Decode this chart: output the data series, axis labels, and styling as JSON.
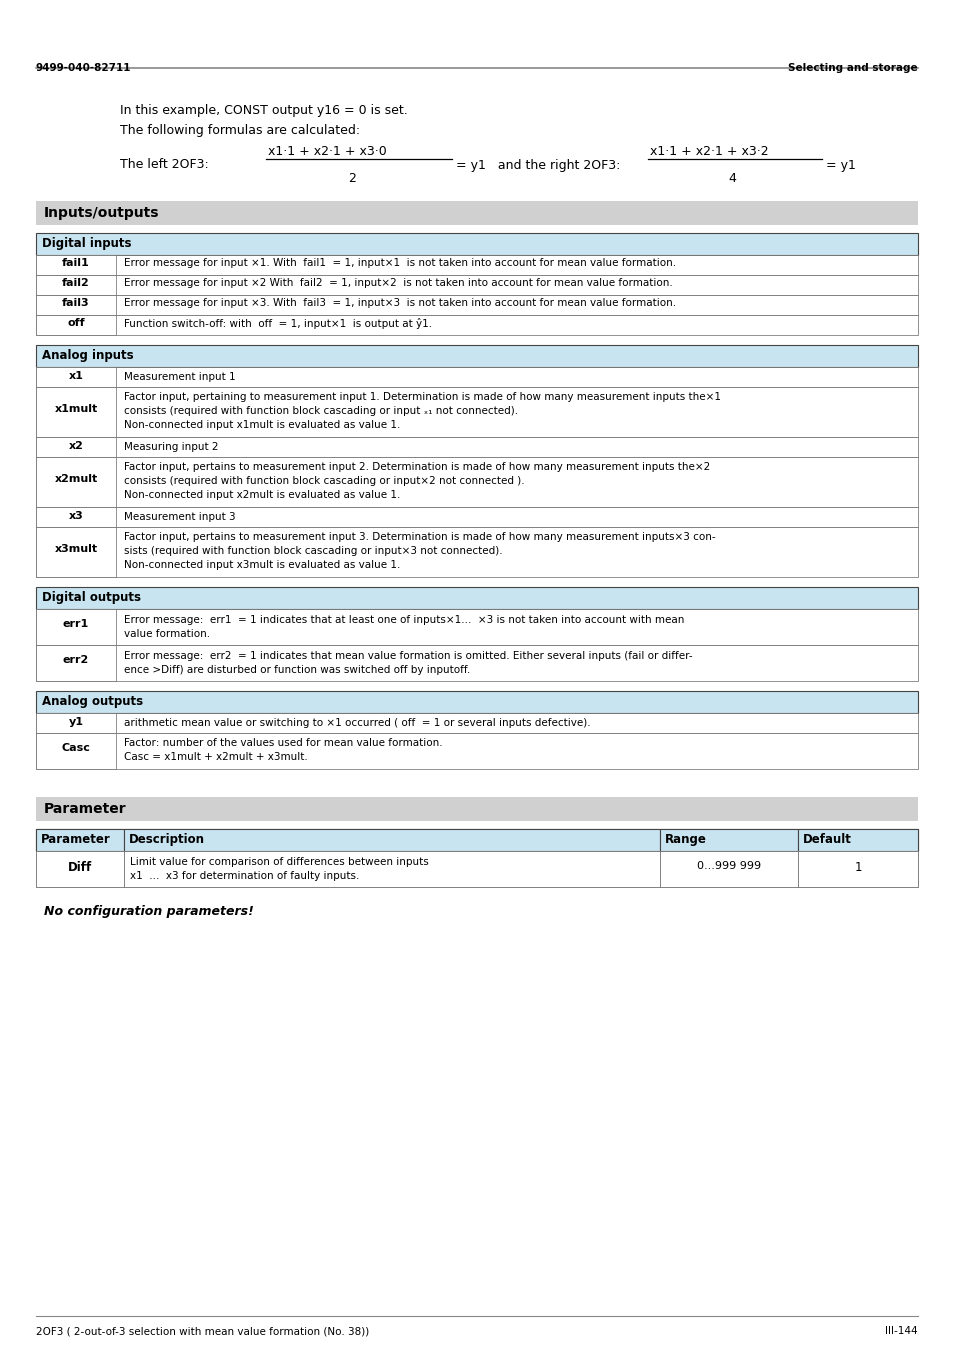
{
  "page_header_left": "9499-040-82711",
  "page_header_right": "Selecting and storage",
  "page_footer_left": "2OF3 ( 2-out-of-3 selection with mean value formation (No. 38))",
  "page_footer_right": "III-144",
  "intro_line1": "In this example, CONST output y16 = 0 is set.",
  "intro_line2": "The following formulas are calculated:",
  "section_title_io": "Inputs/outputs",
  "section_title_param": "Parameter",
  "table_header_bg": "#c8e4f0",
  "section_header_bg": "#d0d0d0",
  "digital_inputs_header": "Digital inputs",
  "digital_inputs": [
    {
      "name": "fail1",
      "desc": "Error message for input ×1. With  fail1  = 1, input×1  is not taken into account for mean value formation."
    },
    {
      "name": "fail2",
      "desc": "Error message for input ×2 With  fail2  = 1, input×2  is not taken into account for mean value formation."
    },
    {
      "name": "fail3",
      "desc": "Error message for input ×3. With  fail3  = 1, input×3  is not taken into account for mean value formation."
    },
    {
      "name": "off",
      "desc": "Function switch-off: with  off  = 1, input×1  is output at ŷ1."
    }
  ],
  "analog_inputs_header": "Analog inputs",
  "analog_inputs": [
    {
      "name": "x1",
      "desc_lines": [
        "Measurement input 1"
      ]
    },
    {
      "name": "x1mult",
      "desc_lines": [
        "Factor input, pertaining to measurement input 1. Determination is made of how many measurement inputs the×1",
        "consists (required with function block cascading or input ₓ₁ not connected).",
        "Non-connected input x1mult is evaluated as value 1."
      ]
    },
    {
      "name": "x2",
      "desc_lines": [
        "Measuring input 2"
      ]
    },
    {
      "name": "x2mult",
      "desc_lines": [
        "Factor input, pertains to measurement input 2. Determination is made of how many measurement inputs the×2",
        "consists (required with function block cascading or input×2 not connected ).",
        "Non-connected input x2mult is evaluated as value 1."
      ]
    },
    {
      "name": "x3",
      "desc_lines": [
        "Measurement input 3"
      ]
    },
    {
      "name": "x3mult",
      "desc_lines": [
        "Factor input, pertains to measurement input 3. Determination is made of how many measurement inputs×3 con-",
        "sists (required with function block cascading or input×3 not connected).",
        "Non-connected input x3mult is evaluated as value 1."
      ]
    }
  ],
  "digital_outputs_header": "Digital outputs",
  "digital_outputs": [
    {
      "name": "err1",
      "desc_lines": [
        "Error message:  err1  = 1 indicates that at least one of inputs×1...  ×3 is not taken into account with mean",
        "value formation."
      ]
    },
    {
      "name": "err2",
      "desc_lines": [
        "Error message:  err2  = 1 indicates that mean value formation is omitted. Either several inputs (fail or differ-",
        "ence >Diff) are disturbed or function was switched off by inputoff."
      ]
    }
  ],
  "analog_outputs_header": "Analog outputs",
  "analog_outputs": [
    {
      "name": "y1",
      "desc_lines": [
        "arithmetic mean value or switching to ×1 occurred ( off  = 1 or several inputs defective)."
      ]
    },
    {
      "name": "Casc",
      "desc_lines": [
        "Factor: number of the values used for mean value formation.",
        "Casc = x1mult + x2mult + x3mult."
      ]
    }
  ],
  "param_header_cols": [
    "Parameter",
    "Description",
    "Range",
    "Default"
  ],
  "param_rows": [
    {
      "name": "Diff",
      "desc_lines": [
        "Limit value for comparison of differences between inputs",
        "x1  ...  x3 for determination of faulty inputs."
      ],
      "range": "0...999 999",
      "default": "1"
    }
  ],
  "no_config_note": "No configuration parameters!"
}
